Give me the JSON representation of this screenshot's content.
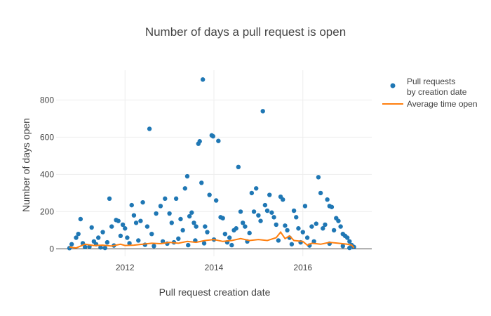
{
  "chart_data": {
    "type": "scatter",
    "title": "Number of days a pull request is open",
    "xlabel": "Pull request creation date",
    "ylabel": "Number of days open",
    "xlim": [
      2010.45,
      2017.55
    ],
    "ylim": [
      -40,
      960
    ],
    "x_ticks": [
      2012,
      2014,
      2016
    ],
    "x_tick_labels": [
      "2012",
      "2014",
      "2016"
    ],
    "y_ticks": [
      0,
      200,
      400,
      600,
      800
    ],
    "y_tick_labels": [
      "0",
      "200",
      "400",
      "600",
      "800"
    ],
    "grid": true,
    "legend_position": "top-right",
    "colors": {
      "points": "#1f77b4",
      "line": "#ff7f0e",
      "grid": "#eeeeee",
      "zeroline": "#444444"
    },
    "series": [
      {
        "name": "Pull requests\nby creation date",
        "kind": "scatter",
        "points": [
          {
            "x": 2010.75,
            "y": 4
          },
          {
            "x": 2010.8,
            "y": 25
          },
          {
            "x": 2010.9,
            "y": 60
          },
          {
            "x": 2010.95,
            "y": 80
          },
          {
            "x": 2011.0,
            "y": 160
          },
          {
            "x": 2011.05,
            "y": 30
          },
          {
            "x": 2011.1,
            "y": 10
          },
          {
            "x": 2011.25,
            "y": 115
          },
          {
            "x": 2011.3,
            "y": 40
          },
          {
            "x": 2011.4,
            "y": 60
          },
          {
            "x": 2011.5,
            "y": 90
          },
          {
            "x": 2011.55,
            "y": 5
          },
          {
            "x": 2011.65,
            "y": 270
          },
          {
            "x": 2011.7,
            "y": 120
          },
          {
            "x": 2011.8,
            "y": 155
          },
          {
            "x": 2011.85,
            "y": 150
          },
          {
            "x": 2011.9,
            "y": 70
          },
          {
            "x": 2011.95,
            "y": 130
          },
          {
            "x": 2012.0,
            "y": 110
          },
          {
            "x": 2012.05,
            "y": 60
          },
          {
            "x": 2012.15,
            "y": 235
          },
          {
            "x": 2012.2,
            "y": 180
          },
          {
            "x": 2012.25,
            "y": 140
          },
          {
            "x": 2012.35,
            "y": 150
          },
          {
            "x": 2012.4,
            "y": 250
          },
          {
            "x": 2012.5,
            "y": 120
          },
          {
            "x": 2012.55,
            "y": 645
          },
          {
            "x": 2012.6,
            "y": 80
          },
          {
            "x": 2012.7,
            "y": 190
          },
          {
            "x": 2012.8,
            "y": 230
          },
          {
            "x": 2012.9,
            "y": 270
          },
          {
            "x": 2013.0,
            "y": 190
          },
          {
            "x": 2013.05,
            "y": 140
          },
          {
            "x": 2013.15,
            "y": 270
          },
          {
            "x": 2013.25,
            "y": 160
          },
          {
            "x": 2013.3,
            "y": 100
          },
          {
            "x": 2013.35,
            "y": 325
          },
          {
            "x": 2013.4,
            "y": 390
          },
          {
            "x": 2013.45,
            "y": 175
          },
          {
            "x": 2013.5,
            "y": 195
          },
          {
            "x": 2013.55,
            "y": 140
          },
          {
            "x": 2013.6,
            "y": 120
          },
          {
            "x": 2013.65,
            "y": 565
          },
          {
            "x": 2013.68,
            "y": 578
          },
          {
            "x": 2013.72,
            "y": 355
          },
          {
            "x": 2013.75,
            "y": 910
          },
          {
            "x": 2013.8,
            "y": 120
          },
          {
            "x": 2013.85,
            "y": 90
          },
          {
            "x": 2013.9,
            "y": 290
          },
          {
            "x": 2013.95,
            "y": 610
          },
          {
            "x": 2013.98,
            "y": 605
          },
          {
            "x": 2014.05,
            "y": 260
          },
          {
            "x": 2014.1,
            "y": 580
          },
          {
            "x": 2014.15,
            "y": 170
          },
          {
            "x": 2014.2,
            "y": 165
          },
          {
            "x": 2014.25,
            "y": 80
          },
          {
            "x": 2014.35,
            "y": 60
          },
          {
            "x": 2014.45,
            "y": 100
          },
          {
            "x": 2014.5,
            "y": 110
          },
          {
            "x": 2014.55,
            "y": 440
          },
          {
            "x": 2014.6,
            "y": 200
          },
          {
            "x": 2014.65,
            "y": 140
          },
          {
            "x": 2014.7,
            "y": 120
          },
          {
            "x": 2014.8,
            "y": 85
          },
          {
            "x": 2014.85,
            "y": 300
          },
          {
            "x": 2014.9,
            "y": 200
          },
          {
            "x": 2014.95,
            "y": 325
          },
          {
            "x": 2015.0,
            "y": 180
          },
          {
            "x": 2015.05,
            "y": 150
          },
          {
            "x": 2015.1,
            "y": 740
          },
          {
            "x": 2015.15,
            "y": 235
          },
          {
            "x": 2015.2,
            "y": 205
          },
          {
            "x": 2015.25,
            "y": 290
          },
          {
            "x": 2015.3,
            "y": 195
          },
          {
            "x": 2015.35,
            "y": 170
          },
          {
            "x": 2015.4,
            "y": 130
          },
          {
            "x": 2015.5,
            "y": 280
          },
          {
            "x": 2015.55,
            "y": 265
          },
          {
            "x": 2015.6,
            "y": 125
          },
          {
            "x": 2015.65,
            "y": 100
          },
          {
            "x": 2015.7,
            "y": 60
          },
          {
            "x": 2015.8,
            "y": 205
          },
          {
            "x": 2015.85,
            "y": 170
          },
          {
            "x": 2015.9,
            "y": 110
          },
          {
            "x": 2016.0,
            "y": 90
          },
          {
            "x": 2016.05,
            "y": 230
          },
          {
            "x": 2016.1,
            "y": 60
          },
          {
            "x": 2016.2,
            "y": 120
          },
          {
            "x": 2016.3,
            "y": 135
          },
          {
            "x": 2016.35,
            "y": 385
          },
          {
            "x": 2016.4,
            "y": 300
          },
          {
            "x": 2016.45,
            "y": 110
          },
          {
            "x": 2016.5,
            "y": 130
          },
          {
            "x": 2016.55,
            "y": 265
          },
          {
            "x": 2016.6,
            "y": 230
          },
          {
            "x": 2016.65,
            "y": 225
          },
          {
            "x": 2016.7,
            "y": 100
          },
          {
            "x": 2016.75,
            "y": 165
          },
          {
            "x": 2016.8,
            "y": 150
          },
          {
            "x": 2016.85,
            "y": 120
          },
          {
            "x": 2016.9,
            "y": 80
          },
          {
            "x": 2016.95,
            "y": 70
          },
          {
            "x": 2017.0,
            "y": 60
          },
          {
            "x": 2017.05,
            "y": 40
          },
          {
            "x": 2017.1,
            "y": 20
          },
          {
            "x": 2017.15,
            "y": 10
          },
          {
            "x": 2011.2,
            "y": 12
          },
          {
            "x": 2011.35,
            "y": 25
          },
          {
            "x": 2011.45,
            "y": 8
          },
          {
            "x": 2011.6,
            "y": 35
          },
          {
            "x": 2011.75,
            "y": 18
          },
          {
            "x": 2012.1,
            "y": 30
          },
          {
            "x": 2012.3,
            "y": 45
          },
          {
            "x": 2012.45,
            "y": 22
          },
          {
            "x": 2012.65,
            "y": 15
          },
          {
            "x": 2012.85,
            "y": 40
          },
          {
            "x": 2012.95,
            "y": 28
          },
          {
            "x": 2013.1,
            "y": 35
          },
          {
            "x": 2013.2,
            "y": 55
          },
          {
            "x": 2013.42,
            "y": 20
          },
          {
            "x": 2013.58,
            "y": 45
          },
          {
            "x": 2013.78,
            "y": 30
          },
          {
            "x": 2014.0,
            "y": 50
          },
          {
            "x": 2014.3,
            "y": 35
          },
          {
            "x": 2014.4,
            "y": 20
          },
          {
            "x": 2014.75,
            "y": 40
          },
          {
            "x": 2015.45,
            "y": 45
          },
          {
            "x": 2015.75,
            "y": 25
          },
          {
            "x": 2015.95,
            "y": 35
          },
          {
            "x": 2016.15,
            "y": 18
          },
          {
            "x": 2016.25,
            "y": 40
          },
          {
            "x": 2016.6,
            "y": 28
          },
          {
            "x": 2016.9,
            "y": 15
          },
          {
            "x": 2017.05,
            "y": 5
          }
        ]
      },
      {
        "name": "Average time open",
        "kind": "line",
        "points": [
          {
            "x": 2010.75,
            "y": 10
          },
          {
            "x": 2010.9,
            "y": 5
          },
          {
            "x": 2011.0,
            "y": 15
          },
          {
            "x": 2011.1,
            "y": 25
          },
          {
            "x": 2011.3,
            "y": 18
          },
          {
            "x": 2011.5,
            "y": 20
          },
          {
            "x": 2011.7,
            "y": 15
          },
          {
            "x": 2011.9,
            "y": 25
          },
          {
            "x": 2012.0,
            "y": 18
          },
          {
            "x": 2012.2,
            "y": 20
          },
          {
            "x": 2012.4,
            "y": 25
          },
          {
            "x": 2012.6,
            "y": 30
          },
          {
            "x": 2012.8,
            "y": 28
          },
          {
            "x": 2013.0,
            "y": 35
          },
          {
            "x": 2013.2,
            "y": 30
          },
          {
            "x": 2013.4,
            "y": 40
          },
          {
            "x": 2013.6,
            "y": 35
          },
          {
            "x": 2013.8,
            "y": 45
          },
          {
            "x": 2014.0,
            "y": 50
          },
          {
            "x": 2014.2,
            "y": 40
          },
          {
            "x": 2014.4,
            "y": 45
          },
          {
            "x": 2014.6,
            "y": 55
          },
          {
            "x": 2014.8,
            "y": 45
          },
          {
            "x": 2015.0,
            "y": 50
          },
          {
            "x": 2015.2,
            "y": 45
          },
          {
            "x": 2015.4,
            "y": 60
          },
          {
            "x": 2015.5,
            "y": 90
          },
          {
            "x": 2015.6,
            "y": 55
          },
          {
            "x": 2015.7,
            "y": 70
          },
          {
            "x": 2015.8,
            "y": 45
          },
          {
            "x": 2016.0,
            "y": 40
          },
          {
            "x": 2016.1,
            "y": 20
          },
          {
            "x": 2016.2,
            "y": 30
          },
          {
            "x": 2016.4,
            "y": 25
          },
          {
            "x": 2016.6,
            "y": 35
          },
          {
            "x": 2016.8,
            "y": 30
          },
          {
            "x": 2017.0,
            "y": 25
          },
          {
            "x": 2017.1,
            "y": 20
          },
          {
            "x": 2017.15,
            "y": 5
          }
        ]
      }
    ]
  }
}
